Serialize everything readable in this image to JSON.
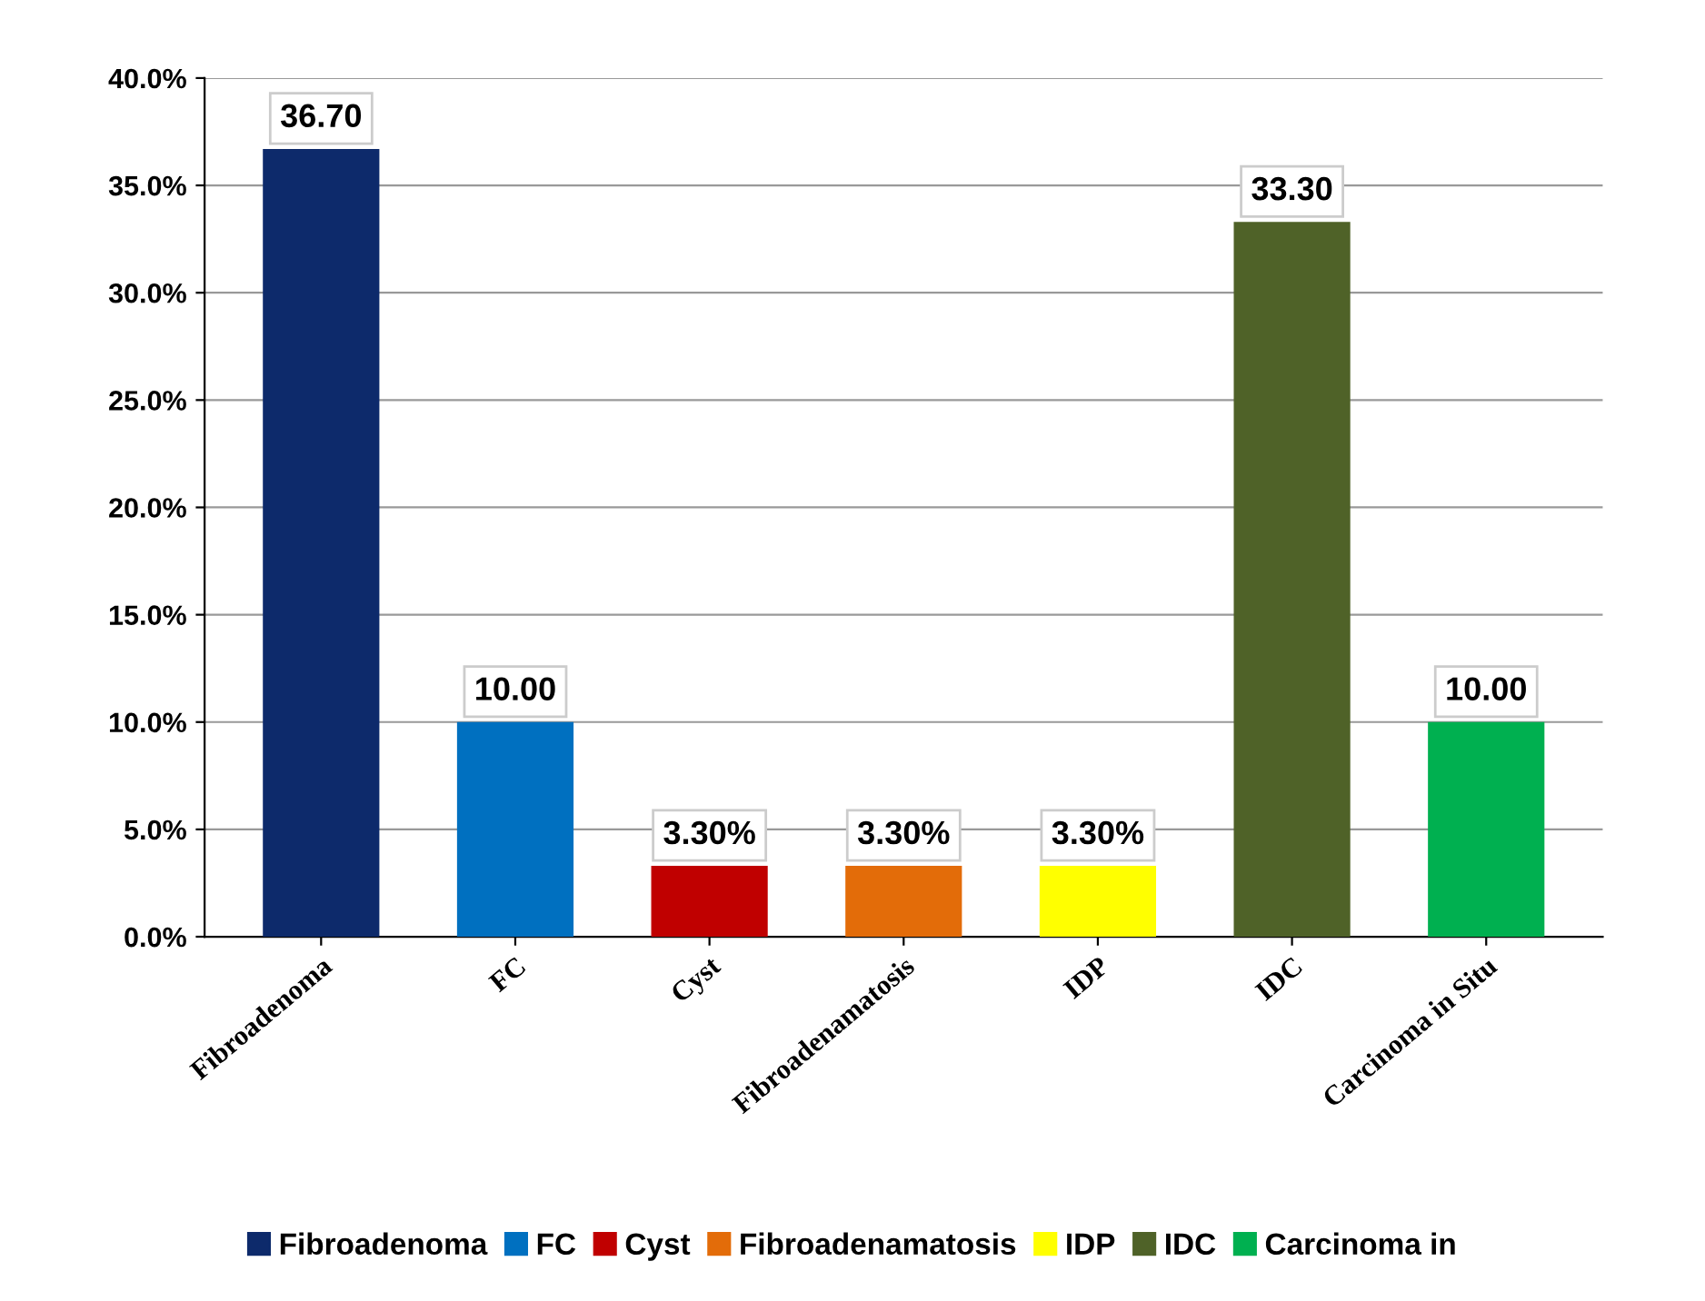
{
  "chart_data": {
    "type": "bar",
    "categories": [
      "Fibroadenoma",
      "FC",
      "Cyst",
      "Fibroadenamatosis",
      "IDP",
      "IDC",
      "Carcinoma in Situ"
    ],
    "series": [
      {
        "name": "Fibroadenoma",
        "color": "#0d2a6b",
        "values": [
          36.7,
          null,
          null,
          null,
          null,
          null,
          null
        ],
        "value_labels": [
          "36.70",
          null,
          null,
          null,
          null,
          null,
          null
        ]
      },
      {
        "name": "FC",
        "color": "#0070c0",
        "values": [
          null,
          10.0,
          null,
          null,
          null,
          null,
          null
        ],
        "value_labels": [
          null,
          "10.00",
          null,
          null,
          null,
          null,
          null
        ]
      },
      {
        "name": "Cyst",
        "color": "#c00000",
        "values": [
          null,
          null,
          3.3,
          null,
          null,
          null,
          null
        ],
        "value_labels": [
          null,
          null,
          "3.30%",
          null,
          null,
          null,
          null
        ]
      },
      {
        "name": "Fibroadenamatosis",
        "color": "#e36c09",
        "values": [
          null,
          null,
          null,
          3.3,
          null,
          null,
          null
        ],
        "value_labels": [
          null,
          null,
          null,
          "3.30%",
          null,
          null,
          null
        ]
      },
      {
        "name": "IDP",
        "color": "#ffff00",
        "values": [
          null,
          null,
          null,
          null,
          3.3,
          null,
          null
        ],
        "value_labels": [
          null,
          null,
          null,
          null,
          "3.30%",
          null,
          null
        ]
      },
      {
        "name": "IDC",
        "color": "#4f6228",
        "values": [
          null,
          null,
          null,
          null,
          null,
          33.3,
          null
        ],
        "value_labels": [
          null,
          null,
          null,
          null,
          null,
          "33.30",
          null
        ]
      },
      {
        "name": "Carcinoma in",
        "color": "#00b050",
        "values": [
          null,
          null,
          null,
          null,
          null,
          null,
          10.0
        ],
        "value_labels": [
          null,
          null,
          null,
          null,
          null,
          null,
          "10.00"
        ]
      }
    ],
    "ylim": [
      0,
      40
    ],
    "yticks": [
      {
        "value": 0,
        "label": "0.0%"
      },
      {
        "value": 5,
        "label": "5.0%"
      },
      {
        "value": 10,
        "label": "10.0%"
      },
      {
        "value": 15,
        "label": "15.0%"
      },
      {
        "value": 20,
        "label": "20.0%"
      },
      {
        "value": 25,
        "label": "25.0%"
      },
      {
        "value": 30,
        "label": "30.0%"
      },
      {
        "value": 35,
        "label": "35.0%"
      },
      {
        "value": 40,
        "label": "40.0%"
      }
    ],
    "grid": "y",
    "legend": "bottom"
  }
}
